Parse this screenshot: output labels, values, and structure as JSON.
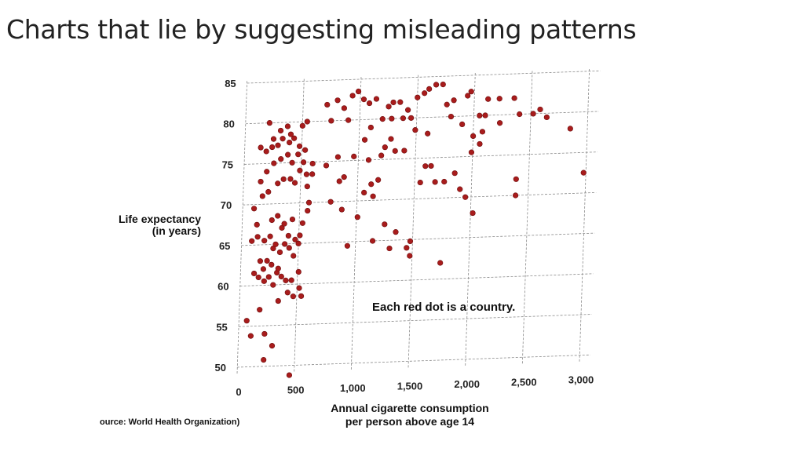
{
  "slide": {
    "title": "Charts that lie by suggesting misleading patterns"
  },
  "chart_data": {
    "type": "scatter",
    "xlabel": [
      "Annual cigarette consumption",
      "per person above age 14"
    ],
    "ylabel": [
      "Life expectancy",
      "(in years)"
    ],
    "annotation": "Each red dot is a country.",
    "source": "ource: World Health Organization)",
    "xlim": [
      0,
      3000
    ],
    "ylim": [
      50,
      85
    ],
    "x_ticks": [
      0,
      500,
      1000,
      1500,
      2000,
      2500,
      3000
    ],
    "x_tick_labels": [
      "0",
      "500",
      "1,000",
      "1,500",
      "2,000",
      "2,500",
      "3,000"
    ],
    "y_ticks": [
      50,
      55,
      60,
      65,
      70,
      75,
      80,
      85
    ],
    "y_tick_labels": [
      "50",
      "55",
      "60",
      "65",
      "70",
      "75",
      "80",
      "85"
    ],
    "grid": true,
    "dot_color": "#a81c1c",
    "points": [
      [
        70,
        55.7
      ],
      [
        110,
        53.8
      ],
      [
        230,
        50.8
      ],
      [
        300,
        52.5
      ],
      [
        230,
        54
      ],
      [
        460,
        48.8
      ],
      [
        180,
        57
      ],
      [
        340,
        58
      ],
      [
        470,
        58.5
      ],
      [
        540,
        58.5
      ],
      [
        520,
        59.5
      ],
      [
        420,
        59
      ],
      [
        120,
        61.5
      ],
      [
        160,
        61
      ],
      [
        210,
        60.5
      ],
      [
        250,
        61
      ],
      [
        290,
        60
      ],
      [
        320,
        61.5
      ],
      [
        360,
        61
      ],
      [
        400,
        60.5
      ],
      [
        450,
        60.5
      ],
      [
        200,
        62
      ],
      [
        270,
        62.5
      ],
      [
        330,
        62
      ],
      [
        510,
        61.5
      ],
      [
        170,
        63
      ],
      [
        230,
        63
      ],
      [
        280,
        64.5
      ],
      [
        340,
        64
      ],
      [
        380,
        65
      ],
      [
        420,
        64.5
      ],
      [
        460,
        63.5
      ],
      [
        500,
        65
      ],
      [
        90,
        65.5
      ],
      [
        140,
        66
      ],
      [
        200,
        65.5
      ],
      [
        250,
        66
      ],
      [
        300,
        65
      ],
      [
        350,
        67
      ],
      [
        410,
        66
      ],
      [
        470,
        65.5
      ],
      [
        510,
        66
      ],
      [
        130,
        67.5
      ],
      [
        260,
        68
      ],
      [
        310,
        68.5
      ],
      [
        370,
        67.5
      ],
      [
        440,
        68
      ],
      [
        530,
        67.5
      ],
      [
        100,
        69.5
      ],
      [
        170,
        71
      ],
      [
        220,
        71.5
      ],
      [
        300,
        72.5
      ],
      [
        350,
        73
      ],
      [
        410,
        73
      ],
      [
        450,
        72.5
      ],
      [
        490,
        74
      ],
      [
        550,
        73.5
      ],
      [
        580,
        70
      ],
      [
        570,
        69
      ],
      [
        150,
        72.8
      ],
      [
        200,
        74
      ],
      [
        260,
        75
      ],
      [
        320,
        75.5
      ],
      [
        380,
        76
      ],
      [
        420,
        75
      ],
      [
        470,
        76
      ],
      [
        520,
        75
      ],
      [
        560,
        72
      ],
      [
        600,
        73.5
      ],
      [
        600,
        74.8
      ],
      [
        190,
        76.5
      ],
      [
        240,
        77
      ],
      [
        290,
        77.2
      ],
      [
        330,
        78
      ],
      [
        390,
        77.5
      ],
      [
        430,
        78
      ],
      [
        480,
        77
      ],
      [
        530,
        76.5
      ],
      [
        140,
        77
      ],
      [
        250,
        78
      ],
      [
        310,
        79
      ],
      [
        370,
        79.5
      ],
      [
        400,
        78.5
      ],
      [
        500,
        79.5
      ],
      [
        540,
        80
      ],
      [
        210,
        80
      ],
      [
        720,
        74.5
      ],
      [
        770,
        70
      ],
      [
        840,
        72.5
      ],
      [
        870,
        69
      ],
      [
        930,
        64.5
      ],
      [
        820,
        75.5
      ],
      [
        880,
        73
      ],
      [
        960,
        75.5
      ],
      [
        1050,
        77.5
      ],
      [
        1090,
        75
      ],
      [
        1120,
        72
      ],
      [
        1010,
        68
      ],
      [
        1060,
        71
      ],
      [
        1140,
        70.5
      ],
      [
        1180,
        72.5
      ],
      [
        1150,
        65
      ],
      [
        1250,
        67
      ],
      [
        1300,
        64
      ],
      [
        1350,
        66
      ],
      [
        1450,
        64
      ],
      [
        1480,
        63
      ],
      [
        1480,
        64.8
      ],
      [
        1200,
        75.5
      ],
      [
        1230,
        76.5
      ],
      [
        1280,
        77.5
      ],
      [
        1320,
        76
      ],
      [
        1400,
        76
      ],
      [
        1450,
        80
      ],
      [
        1490,
        78.5
      ],
      [
        1550,
        72
      ],
      [
        1590,
        74
      ],
      [
        1640,
        74
      ],
      [
        1680,
        72
      ],
      [
        1750,
        62
      ],
      [
        1760,
        72
      ],
      [
        1850,
        73
      ],
      [
        1900,
        71
      ],
      [
        1950,
        70
      ],
      [
        1990,
        75.5
      ],
      [
        2020,
        68
      ],
      [
        2060,
        76.5
      ],
      [
        2080,
        78
      ],
      [
        2100,
        80
      ],
      [
        710,
        82
      ],
      [
        800,
        82.5
      ],
      [
        860,
        81.5
      ],
      [
        930,
        83
      ],
      [
        980,
        83.5
      ],
      [
        1030,
        82.5
      ],
      [
        1080,
        82
      ],
      [
        1140,
        82.5
      ],
      [
        1200,
        80
      ],
      [
        1250,
        81.5
      ],
      [
        1290,
        82
      ],
      [
        1350,
        82
      ],
      [
        1380,
        80
      ],
      [
        1420,
        81
      ],
      [
        1500,
        82.5
      ],
      [
        1560,
        83
      ],
      [
        1600,
        83.5
      ],
      [
        1660,
        84
      ],
      [
        1720,
        84
      ],
      [
        1760,
        81.5
      ],
      [
        1820,
        82
      ],
      [
        1940,
        82.5
      ],
      [
        1970,
        83
      ],
      [
        2050,
        80
      ],
      [
        2120,
        82
      ],
      [
        2220,
        82
      ],
      [
        2350,
        82
      ],
      [
        2400,
        80
      ],
      [
        2520,
        80
      ],
      [
        2580,
        80.5
      ],
      [
        2640,
        79.5
      ],
      [
        2850,
        78
      ],
      [
        2980,
        72.5
      ],
      [
        2390,
        70
      ],
      [
        2390,
        72
      ],
      [
        750,
        80
      ],
      [
        900,
        80
      ],
      [
        1100,
        79
      ],
      [
        1280,
        80
      ],
      [
        1600,
        78
      ],
      [
        1800,
        80
      ],
      [
        1900,
        79
      ],
      [
        2000,
        77.5
      ],
      [
        2230,
        79
      ]
    ]
  }
}
